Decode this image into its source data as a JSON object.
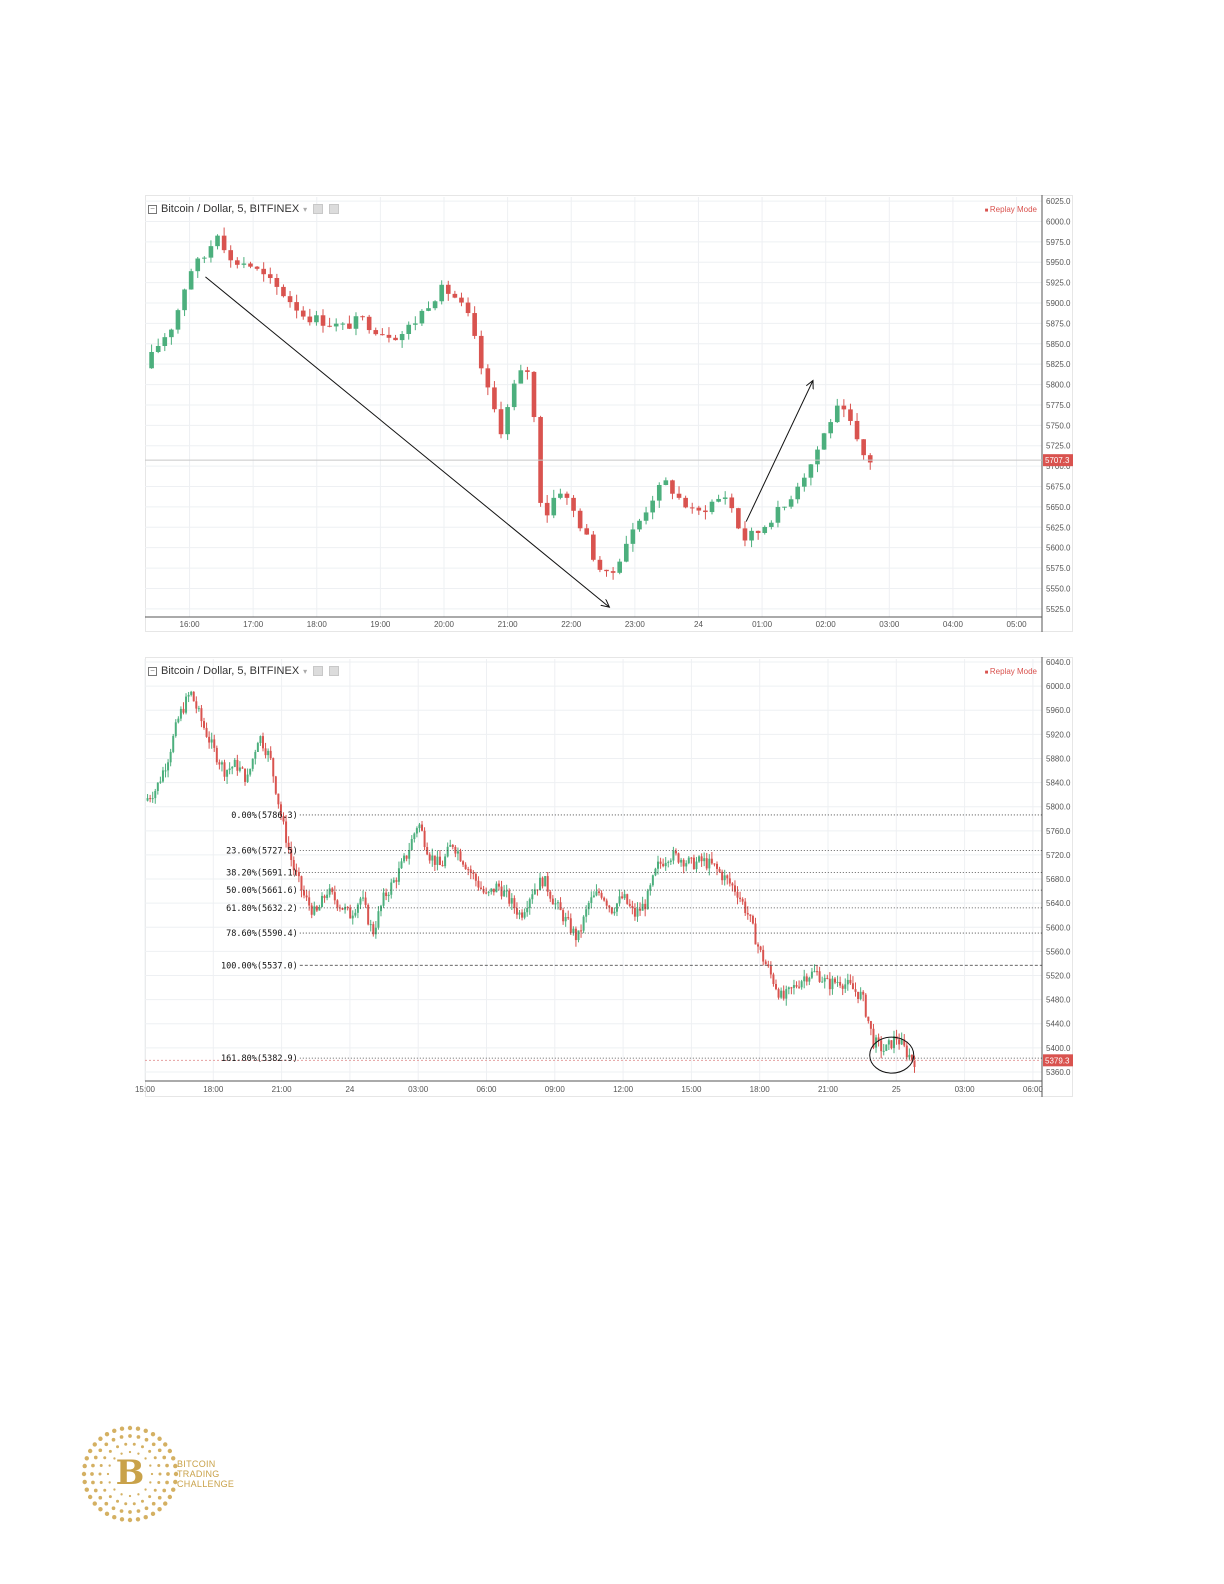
{
  "charts": [
    {
      "title": "Bitcoin / Dollar, 5, BITFINEX",
      "replay_label": "Replay Mode",
      "price_label": "5707.3",
      "colors": {
        "up": "#4caf7d",
        "down": "#d9534f",
        "grid": "#eef0f3",
        "axis": "#555555"
      }
    },
    {
      "title": "Bitcoin / Dollar, 5, BITFINEX",
      "replay_label": "Replay Mode",
      "price_label": "5379.3",
      "colors": {
        "up": "#4caf7d",
        "down": "#d9534f",
        "grid": "#eef0f3",
        "axis": "#555555"
      }
    }
  ],
  "chart_data": [
    {
      "type": "candlestick",
      "title": "Bitcoin / Dollar, 5, BITFINEX",
      "y_ticks": [
        "6025.0",
        "6000.0",
        "5975.0",
        "5950.0",
        "5925.0",
        "5900.0",
        "5875.0",
        "5850.0",
        "5825.0",
        "5800.0",
        "5775.0",
        "5750.0",
        "5725.0",
        "5700.0",
        "5675.0",
        "5650.0",
        "5625.0",
        "5600.0",
        "5575.0",
        "5550.0",
        "5525.0"
      ],
      "ylim": [
        5515,
        6030
      ],
      "x_ticks": [
        "16:00",
        "17:00",
        "18:00",
        "19:00",
        "20:00",
        "21:00",
        "22:00",
        "23:00",
        "24",
        "01:00",
        "02:00",
        "03:00",
        "04:00",
        "05:00"
      ],
      "xlim_hours": [
        15.3,
        29.4
      ],
      "last_price": 5707.3,
      "close_path": [
        [
          15.3,
          5820
        ],
        [
          15.5,
          5848
        ],
        [
          15.75,
          5875
        ],
        [
          16.0,
          5940
        ],
        [
          16.25,
          5958
        ],
        [
          16.45,
          5990
        ],
        [
          16.65,
          5950
        ],
        [
          16.9,
          5950
        ],
        [
          17.2,
          5930
        ],
        [
          17.5,
          5910
        ],
        [
          17.8,
          5885
        ],
        [
          18.1,
          5878
        ],
        [
          18.4,
          5870
        ],
        [
          18.7,
          5880
        ],
        [
          19.0,
          5865
        ],
        [
          19.3,
          5860
        ],
        [
          19.55,
          5878
        ],
        [
          19.8,
          5905
        ],
        [
          20.0,
          5918
        ],
        [
          20.2,
          5905
        ],
        [
          20.4,
          5880
        ],
        [
          20.65,
          5800
        ],
        [
          20.9,
          5745
        ],
        [
          21.15,
          5810
        ],
        [
          21.35,
          5820
        ],
        [
          21.55,
          5630
        ],
        [
          21.8,
          5675
        ],
        [
          22.0,
          5650
        ],
        [
          22.2,
          5620
        ],
        [
          22.4,
          5580
        ],
        [
          22.6,
          5560
        ],
        [
          22.85,
          5605
        ],
        [
          23.05,
          5630
        ],
        [
          23.3,
          5665
        ],
        [
          23.5,
          5680
        ],
        [
          23.7,
          5660
        ],
        [
          23.95,
          5640
        ],
        [
          24.2,
          5655
        ],
        [
          24.45,
          5665
        ],
        [
          24.7,
          5610
        ],
        [
          24.95,
          5620
        ],
        [
          25.15,
          5638
        ],
        [
          25.35,
          5650
        ],
        [
          25.55,
          5678
        ],
        [
          25.75,
          5700
        ],
        [
          25.95,
          5735
        ],
        [
          26.15,
          5770
        ],
        [
          26.35,
          5760
        ],
        [
          26.55,
          5715
        ],
        [
          26.7,
          5707
        ]
      ],
      "annotations": [
        {
          "type": "arrow",
          "from": [
            16.25,
            5932
          ],
          "to": [
            22.6,
            5527
          ]
        },
        {
          "type": "arrow",
          "from": [
            24.75,
            5632
          ],
          "to": [
            25.8,
            5805
          ]
        }
      ]
    },
    {
      "type": "candlestick",
      "title": "Bitcoin / Dollar, 5, BITFINEX",
      "y_ticks": [
        "6040.0",
        "6000.0",
        "5960.0",
        "5920.0",
        "5880.0",
        "5840.0",
        "5800.0",
        "5760.0",
        "5720.0",
        "5680.0",
        "5640.0",
        "5600.0",
        "5560.0",
        "5520.0",
        "5480.0",
        "5440.0",
        "5400.0",
        "5360.0"
      ],
      "ylim": [
        5345,
        6045
      ],
      "x_ticks": [
        "15:00",
        "18:00",
        "21:00",
        "24",
        "03:00",
        "06:00",
        "09:00",
        "12:00",
        "15:00",
        "18:00",
        "21:00",
        "25",
        "03:00",
        "06:00"
      ],
      "xlim_hours": [
        15.0,
        54.4
      ],
      "last_price": 5379.3,
      "close_path": [
        [
          15.0,
          5810
        ],
        [
          15.5,
          5830
        ],
        [
          16.0,
          5880
        ],
        [
          16.5,
          5950
        ],
        [
          17.0,
          5990
        ],
        [
          17.5,
          5940
        ],
        [
          18.0,
          5895
        ],
        [
          18.5,
          5860
        ],
        [
          19.0,
          5870
        ],
        [
          19.5,
          5845
        ],
        [
          20.0,
          5920
        ],
        [
          20.5,
          5880
        ],
        [
          21.0,
          5780
        ],
        [
          21.5,
          5700
        ],
        [
          22.0,
          5650
        ],
        [
          22.5,
          5620
        ],
        [
          23.0,
          5660
        ],
        [
          23.5,
          5640
        ],
        [
          24.0,
          5620
        ],
        [
          24.5,
          5650
        ],
        [
          25.0,
          5590
        ],
        [
          25.5,
          5650
        ],
        [
          26.0,
          5680
        ],
        [
          26.5,
          5720
        ],
        [
          27.0,
          5775
        ],
        [
          27.5,
          5720
        ],
        [
          28.0,
          5700
        ],
        [
          28.5,
          5740
        ],
        [
          29.0,
          5710
        ],
        [
          29.5,
          5680
        ],
        [
          30.0,
          5650
        ],
        [
          30.5,
          5670
        ],
        [
          31.0,
          5645
        ],
        [
          31.5,
          5620
        ],
        [
          32.0,
          5660
        ],
        [
          32.5,
          5680
        ],
        [
          33.0,
          5640
        ],
        [
          33.5,
          5610
        ],
        [
          34.0,
          5580
        ],
        [
          34.5,
          5640
        ],
        [
          35.0,
          5660
        ],
        [
          35.5,
          5630
        ],
        [
          36.0,
          5650
        ],
        [
          36.5,
          5620
        ],
        [
          37.0,
          5640
        ],
        [
          37.5,
          5700
        ],
        [
          38.0,
          5720
        ],
        [
          38.5,
          5715
        ],
        [
          39.0,
          5705
        ],
        [
          39.5,
          5710
        ],
        [
          40.0,
          5700
        ],
        [
          40.5,
          5680
        ],
        [
          41.0,
          5660
        ],
        [
          41.5,
          5620
        ],
        [
          42.0,
          5560
        ],
        [
          42.5,
          5520
        ],
        [
          43.0,
          5480
        ],
        [
          43.5,
          5500
        ],
        [
          44.0,
          5520
        ],
        [
          44.5,
          5525
        ],
        [
          45.0,
          5505
        ],
        [
          45.5,
          5512
        ],
        [
          46.0,
          5500
        ],
        [
          46.5,
          5485
        ],
        [
          47.0,
          5410
        ],
        [
          47.5,
          5395
        ],
        [
          48.0,
          5418
        ],
        [
          48.5,
          5390
        ],
        [
          48.8,
          5379
        ]
      ],
      "fib_levels": [
        {
          "label": "0.00%(5786.3)",
          "value": 5786.3,
          "style": "dotted"
        },
        {
          "label": "23.60%(5727.5)",
          "value": 5727.5,
          "style": "dotted"
        },
        {
          "label": "38.20%(5691.1)",
          "value": 5691.1,
          "style": "dotted"
        },
        {
          "label": "50.00%(5661.6)",
          "value": 5661.6,
          "style": "dotted"
        },
        {
          "label": "61.80%(5632.2)",
          "value": 5632.2,
          "style": "dotted"
        },
        {
          "label": "78.60%(5590.4)",
          "value": 5590.4,
          "style": "dotted"
        },
        {
          "label": "100.00%(5537.0)",
          "value": 5537.0,
          "style": "dashed"
        },
        {
          "label": "161.80%(5382.9)",
          "value": 5382.9,
          "style": "dotted"
        }
      ],
      "annotations": [
        {
          "type": "ellipse",
          "center": [
            47.8,
            5388
          ]
        }
      ]
    }
  ],
  "logo": {
    "letter": "B",
    "lines": [
      "BITCOIN",
      "TRADING",
      "CHALLENGE"
    ]
  }
}
